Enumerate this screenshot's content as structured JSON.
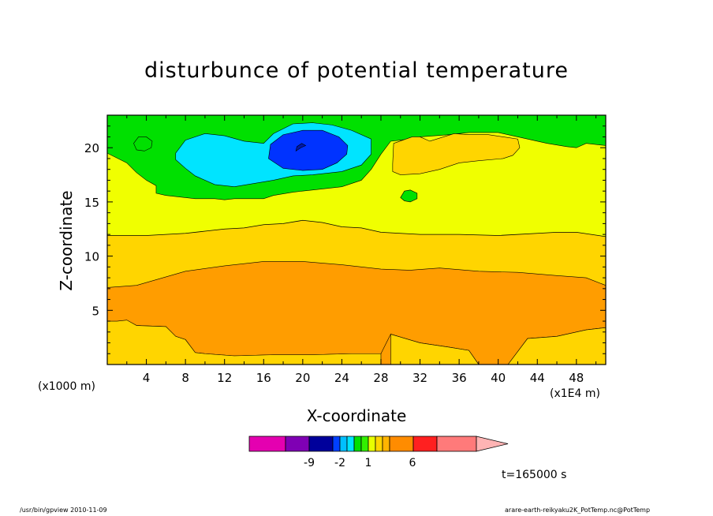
{
  "title": "disturbunce of potential temperature",
  "footer_left": "/usr/bin/gpview  2010-11-09",
  "footer_right": "arare-earth-reikyaku2K_PotTemp.nc@PotTemp",
  "time_label": "t=165000 s",
  "chart_data": {
    "type": "contour",
    "title": "disturbunce of potential temperature",
    "xlabel": "X-coordinate",
    "ylabel": "Z-coordinate",
    "x_unit_label": "(x1E4 m)",
    "y_unit_label": "(x1000 m)",
    "xlim": [
      0,
      51
    ],
    "ylim": [
      0,
      23
    ],
    "x_ticks": [
      4,
      8,
      12,
      16,
      20,
      24,
      28,
      32,
      36,
      40,
      44,
      48
    ],
    "y_ticks": [
      5,
      10,
      15,
      20
    ],
    "levels": [
      -12,
      -9,
      -6,
      -2,
      -1,
      -0.5,
      0,
      0.5,
      1,
      1.5,
      2,
      4,
      6,
      8,
      12
    ],
    "colorbar_tick_labels": [
      "-9",
      "-2",
      "1",
      "6"
    ],
    "colors": [
      "#e400b0",
      "#7f00b4",
      "#00009b",
      "#0040ff",
      "#00bfff",
      "#00f0f0",
      "#00e000",
      "#32f000",
      "#e8ff00",
      "#ffd900",
      "#ffb400",
      "#ff8c00",
      "#ff2020",
      "#ff7a7a",
      "#ffb4b4"
    ],
    "regions": [
      {
        "label": "orange",
        "color": "#ff9d00",
        "polygon": [
          [
            0,
            7.1
          ],
          [
            3,
            7.3
          ],
          [
            8,
            8.6
          ],
          [
            12,
            9.1
          ],
          [
            16,
            9.5
          ],
          [
            20,
            9.5
          ],
          [
            24,
            9.2
          ],
          [
            28,
            8.8
          ],
          [
            31,
            8.7
          ],
          [
            34,
            8.9
          ],
          [
            38,
            8.6
          ],
          [
            42,
            8.5
          ],
          [
            46,
            8.2
          ],
          [
            49,
            8.0
          ],
          [
            51,
            7.3
          ],
          [
            51,
            3.4
          ],
          [
            49,
            3.2
          ],
          [
            46,
            2.6
          ],
          [
            43,
            2.4
          ],
          [
            41,
            0
          ],
          [
            3,
            0
          ],
          [
            3,
            3.6
          ],
          [
            6,
            3.5
          ],
          [
            7,
            2.6
          ],
          [
            8,
            2.3
          ],
          [
            9,
            1.1
          ],
          [
            10,
            1.0
          ],
          [
            13,
            0.8
          ],
          [
            17,
            0.9
          ],
          [
            21,
            0.9
          ],
          [
            25,
            1.0
          ],
          [
            28,
            1.0
          ],
          [
            29,
            2.8
          ],
          [
            32,
            2.0
          ],
          [
            35,
            1.6
          ],
          [
            37,
            1.3
          ],
          [
            38,
            0
          ],
          [
            0,
            0
          ]
        ]
      },
      {
        "label": "green-top",
        "color": "#00e000",
        "polygon": [
          [
            0,
            23
          ],
          [
            51,
            23
          ],
          [
            51,
            20.2
          ],
          [
            49,
            20.4
          ],
          [
            48,
            20.0
          ],
          [
            47,
            20.1
          ],
          [
            45,
            20.4
          ],
          [
            44,
            20.6
          ],
          [
            42,
            21.0
          ],
          [
            40,
            21.4
          ],
          [
            37,
            21.4
          ],
          [
            35,
            21.2
          ],
          [
            32,
            21.0
          ],
          [
            31,
            20.8
          ],
          [
            29,
            20.6
          ],
          [
            28,
            19.4
          ],
          [
            27,
            18.0
          ],
          [
            26,
            17.0
          ],
          [
            24,
            16.4
          ],
          [
            21,
            16.1
          ],
          [
            19,
            15.9
          ],
          [
            17,
            15.6
          ],
          [
            16,
            15.3
          ],
          [
            15,
            15.3
          ],
          [
            13,
            15.3
          ],
          [
            12,
            15.2
          ],
          [
            11,
            15.3
          ],
          [
            9,
            15.3
          ],
          [
            7,
            15.5
          ],
          [
            6,
            15.6
          ],
          [
            5,
            15.8
          ],
          [
            5,
            16.5
          ],
          [
            4,
            17.0
          ],
          [
            3,
            17.7
          ],
          [
            2,
            18.6
          ],
          [
            0,
            19.5
          ]
        ]
      },
      {
        "label": "cyan",
        "color": "#00e4ff",
        "polygon": [
          [
            7,
            19.5
          ],
          [
            8,
            20.7
          ],
          [
            10,
            21.3
          ],
          [
            12,
            21.1
          ],
          [
            14,
            20.6
          ],
          [
            16,
            20.4
          ],
          [
            17,
            21.3
          ],
          [
            19,
            22.2
          ],
          [
            21,
            22.3
          ],
          [
            23,
            22.1
          ],
          [
            25,
            21.6
          ],
          [
            27,
            20.8
          ],
          [
            27,
            19.4
          ],
          [
            26,
            18.4
          ],
          [
            24,
            17.8
          ],
          [
            21,
            17.5
          ],
          [
            19,
            17.4
          ],
          [
            17,
            17.0
          ],
          [
            15,
            16.7
          ],
          [
            13,
            16.4
          ],
          [
            11,
            16.6
          ],
          [
            9,
            17.4
          ],
          [
            8,
            18.1
          ],
          [
            7,
            18.9
          ]
        ]
      },
      {
        "label": "blue",
        "color": "#0033ff",
        "polygon": [
          [
            16.5,
            19.0
          ],
          [
            16.7,
            20.3
          ],
          [
            18,
            21.2
          ],
          [
            20,
            21.6
          ],
          [
            22,
            21.6
          ],
          [
            23.7,
            21.0
          ],
          [
            24.6,
            20.2
          ],
          [
            24.5,
            19.4
          ],
          [
            23.5,
            18.6
          ],
          [
            22,
            18.0
          ],
          [
            20,
            17.9
          ],
          [
            18,
            18.1
          ]
        ]
      },
      {
        "label": "dark-blue",
        "color": "#0018a8",
        "polygon": [
          [
            19.3,
            19.7
          ],
          [
            19.8,
            20.0
          ],
          [
            20.3,
            20.2
          ],
          [
            19.9,
            20.4
          ],
          [
            19.4,
            20.1
          ]
        ]
      },
      {
        "label": "green-blob-a",
        "color": "#00e000",
        "polygon": [
          [
            2.7,
            20.4
          ],
          [
            3.2,
            21.0
          ],
          [
            4.0,
            21.0
          ],
          [
            4.6,
            20.6
          ],
          [
            4.5,
            20.0
          ],
          [
            3.8,
            19.7
          ],
          [
            3.0,
            19.8
          ]
        ]
      },
      {
        "label": "green-blob-b",
        "color": "#00e000",
        "polygon": [
          [
            30.0,
            15.4
          ],
          [
            30.4,
            16.0
          ],
          [
            31.0,
            16.1
          ],
          [
            31.7,
            15.8
          ],
          [
            31.7,
            15.3
          ],
          [
            31.0,
            15.0
          ],
          [
            30.4,
            15.1
          ]
        ]
      },
      {
        "label": "yellow-orange-top",
        "color": "#ffd500",
        "polygon": [
          [
            29.2,
            18.5
          ],
          [
            29.3,
            20.4
          ],
          [
            31.2,
            21.0
          ],
          [
            32.0,
            21.0
          ],
          [
            33,
            20.6
          ],
          [
            35.5,
            21.3
          ],
          [
            37,
            21.2
          ],
          [
            39,
            21.2
          ],
          [
            40.5,
            21.0
          ],
          [
            42.0,
            20.8
          ],
          [
            42.2,
            20.0
          ],
          [
            41.5,
            19.3
          ],
          [
            40.5,
            19.0
          ],
          [
            38,
            18.8
          ],
          [
            36,
            18.6
          ],
          [
            34,
            18.0
          ],
          [
            32,
            17.6
          ],
          [
            30,
            17.5
          ],
          [
            29.2,
            17.8
          ]
        ]
      },
      {
        "label": "yellow-orange-bottom-left",
        "color": "#ffd500",
        "polygon": [
          [
            0,
            0
          ],
          [
            0,
            4.0
          ],
          [
            1,
            4.0
          ],
          [
            2,
            4.1
          ],
          [
            3,
            3.6
          ],
          [
            6,
            3.5
          ],
          [
            7,
            2.6
          ],
          [
            8,
            2.3
          ],
          [
            9,
            1.1
          ],
          [
            10,
            1.0
          ],
          [
            13,
            0.8
          ],
          [
            17,
            0.9
          ],
          [
            21,
            0.9
          ],
          [
            25,
            1.0
          ],
          [
            28,
            1.0
          ],
          [
            28,
            0
          ]
        ]
      },
      {
        "label": "yellow-orange-bottom-right",
        "color": "#ffd500",
        "polygon": [
          [
            29,
            0
          ],
          [
            29,
            2.8
          ],
          [
            32,
            2.0
          ],
          [
            35,
            1.6
          ],
          [
            37,
            1.3
          ],
          [
            38,
            0
          ]
        ]
      },
      {
        "label": "yellow-orange-bottom-far-right",
        "color": "#ffd500",
        "polygon": [
          [
            41,
            0
          ],
          [
            43,
            2.4
          ],
          [
            46,
            2.6
          ],
          [
            49,
            3.2
          ],
          [
            51,
            3.4
          ],
          [
            51,
            0
          ]
        ]
      }
    ],
    "contour_lines": [
      {
        "level": "upper",
        "points": [
          [
            0,
            11.9
          ],
          [
            4,
            11.9
          ],
          [
            8,
            12.1
          ],
          [
            10,
            12.3
          ],
          [
            12,
            12.5
          ],
          [
            14,
            12.6
          ],
          [
            16,
            12.9
          ],
          [
            18,
            13.0
          ],
          [
            20,
            13.3
          ],
          [
            22,
            13.1
          ],
          [
            24,
            12.7
          ],
          [
            26,
            12.6
          ],
          [
            28,
            12.2
          ],
          [
            30,
            12.1
          ],
          [
            32,
            12.0
          ],
          [
            36,
            12.0
          ],
          [
            40,
            11.9
          ],
          [
            44,
            12.1
          ],
          [
            46,
            12.2
          ],
          [
            48,
            12.2
          ],
          [
            51,
            11.8
          ]
        ]
      }
    ]
  }
}
